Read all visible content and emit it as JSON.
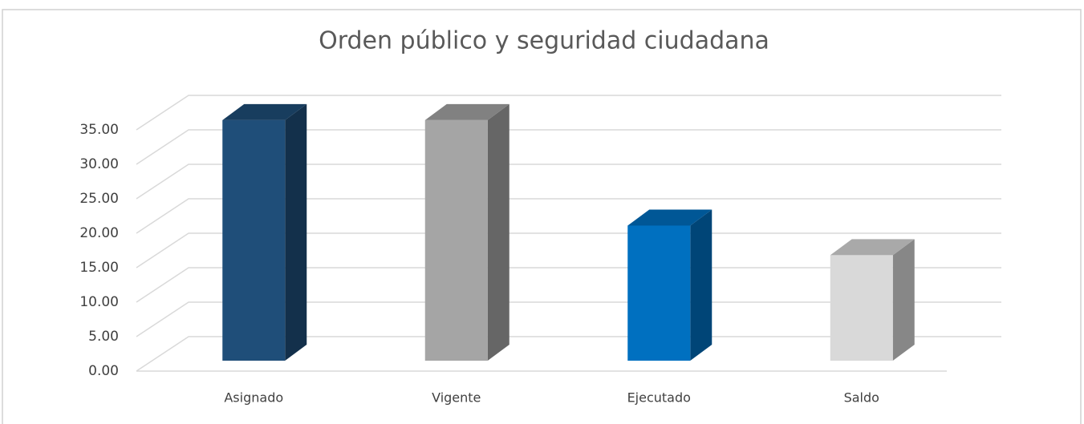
{
  "chart_data": {
    "type": "bar3d",
    "title": "Orden público y seguridad ciudadana",
    "categories": [
      "Asignado",
      "Vigente",
      "Ejecutado",
      "Saldo"
    ],
    "values": [
      34.9,
      34.9,
      19.6,
      15.3
    ],
    "colors": [
      "#1f4e79",
      "#a5a5a5",
      "#0070c0",
      "#d9d9d9"
    ],
    "ylim": [
      0,
      35
    ],
    "yticks": [
      {
        "value": 0,
        "label": "0.00"
      },
      {
        "value": 5,
        "label": "5.00"
      },
      {
        "value": 10,
        "label": "10.00"
      },
      {
        "value": 15,
        "label": "15.00"
      },
      {
        "value": 20,
        "label": "20.00"
      },
      {
        "value": 25,
        "label": "25.00"
      },
      {
        "value": 30,
        "label": "30.00"
      },
      {
        "value": 35,
        "label": "35.00"
      }
    ],
    "grid": true
  }
}
